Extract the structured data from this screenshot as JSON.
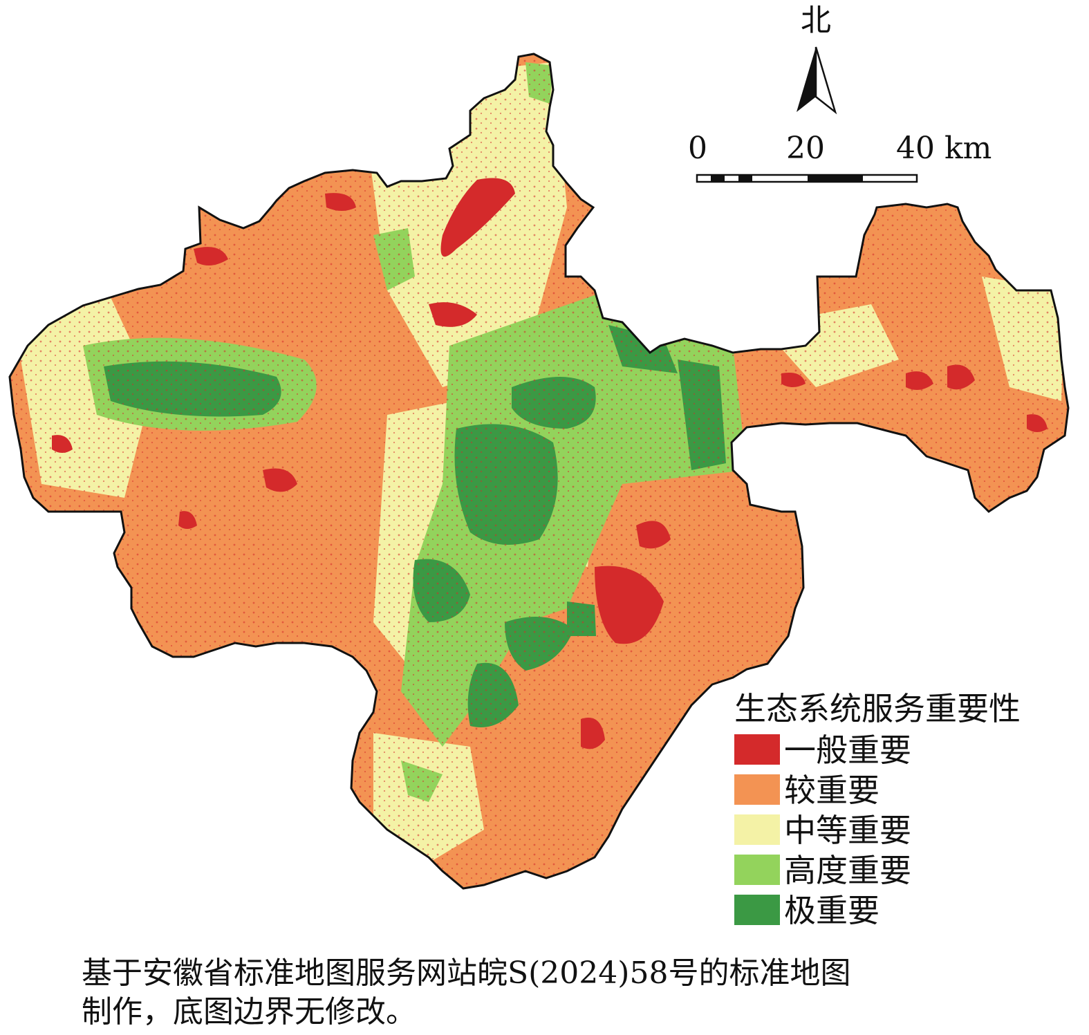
{
  "north": {
    "label": "北",
    "icon": "north-arrow-icon"
  },
  "scale_bar": {
    "ticks": [
      "0",
      "20",
      "40 km"
    ]
  },
  "legend": {
    "title": "生态系统服务重要性",
    "items": [
      {
        "label": "一般重要",
        "color": "#d42a2b"
      },
      {
        "label": "较重要",
        "color": "#f39353"
      },
      {
        "label": "中等重要",
        "color": "#f4f2a6"
      },
      {
        "label": "高度重要",
        "color": "#93d35c"
      },
      {
        "label": "极重要",
        "color": "#3b9944"
      }
    ]
  },
  "caption": {
    "line1": "基于安徽省标准地图服务网站皖S(2024)58号的标准地图",
    "line2": "制作，底图边界无修改。"
  }
}
